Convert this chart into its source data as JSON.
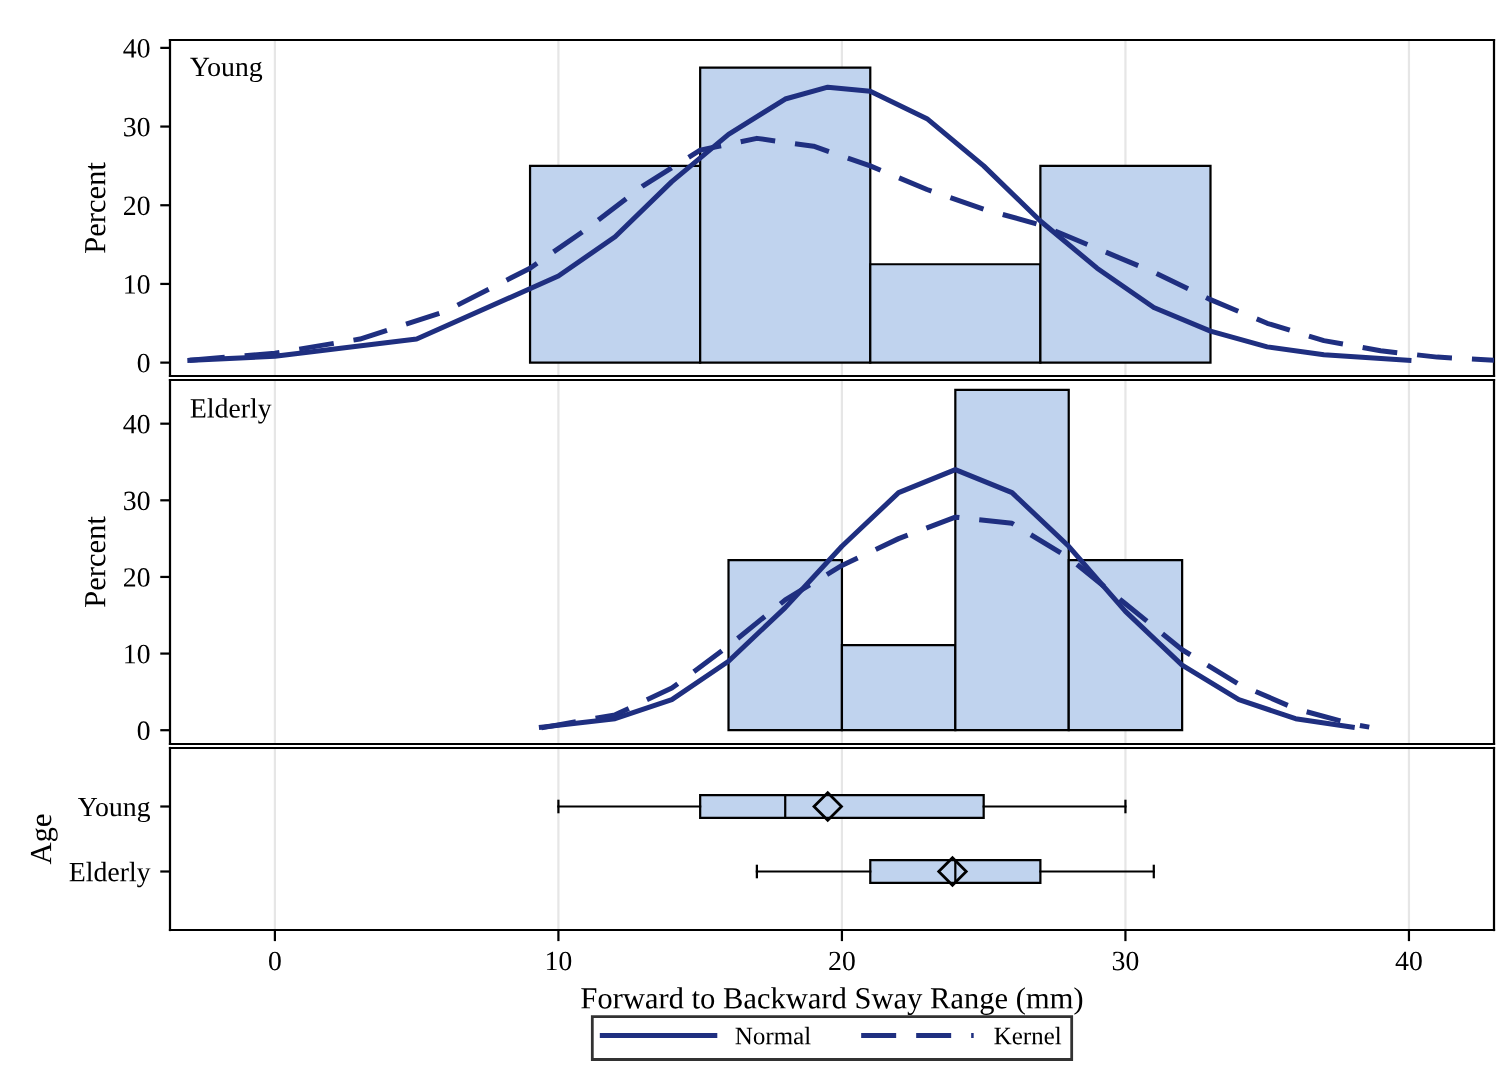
{
  "chart_data": [
    {
      "type": "histogram",
      "annotations": [
        "Young"
      ],
      "ylabel": "Percent",
      "bins": [
        9,
        15,
        21,
        27,
        33
      ],
      "values": [
        25,
        37.5,
        12.5,
        25
      ],
      "color": "#c0d3ee",
      "xlim": [
        -3.7,
        43
      ],
      "ylim": [
        -1.7,
        41
      ],
      "xticks": [
        0,
        10,
        20,
        30,
        40
      ],
      "yticks": [
        0,
        10,
        20,
        30,
        40
      ],
      "tick_labels": "y",
      "grid": "x",
      "legend": "bottom",
      "series": [
        {
          "name": "Normal",
          "type": "line",
          "line_style": "solid",
          "color": "#1f2f80",
          "x": [
            -3,
            0,
            5,
            10,
            12,
            14,
            16,
            18,
            19.5,
            21,
            23,
            25,
            27,
            29,
            31,
            33,
            35,
            37,
            40
          ],
          "values": [
            0.3,
            0.8,
            3,
            11,
            16,
            23,
            29,
            33.5,
            35,
            34.5,
            31,
            25,
            18,
            12,
            7,
            4,
            2,
            1,
            0.3
          ]
        },
        {
          "name": "Kernel",
          "type": "line",
          "line_style": "dashed",
          "color": "#1f2f80",
          "x": [
            -3,
            0,
            3,
            6,
            9,
            11,
            13,
            15,
            17,
            19,
            21,
            23,
            25,
            27,
            29,
            31,
            33,
            35,
            37,
            39,
            41,
            43
          ],
          "values": [
            0.3,
            1.2,
            3,
            6.5,
            12,
            17,
            22.5,
            27,
            28.5,
            27.5,
            25,
            22,
            19.5,
            17.5,
            14.5,
            11.5,
            8,
            5,
            2.8,
            1.5,
            0.7,
            0.3
          ]
        }
      ]
    },
    {
      "type": "histogram",
      "annotations": [
        "Elderly"
      ],
      "ylabel": "Percent",
      "bins": [
        16,
        20,
        24,
        28,
        32
      ],
      "values": [
        22.2,
        11.1,
        44.4,
        22.2
      ],
      "color": "#c0d3ee",
      "xlim": [
        -3.7,
        43
      ],
      "ylim": [
        -1.8,
        45.7
      ],
      "xticks": [
        0,
        10,
        20,
        30,
        40
      ],
      "yticks": [
        0,
        10,
        20,
        30,
        40
      ],
      "tick_labels": "y",
      "grid": "x",
      "series": [
        {
          "name": "Normal",
          "type": "line",
          "line_style": "solid",
          "color": "#1f2f80",
          "x": [
            9.4,
            12,
            14,
            16,
            18,
            20,
            22,
            24,
            26,
            28,
            30,
            32,
            34,
            36,
            38
          ],
          "values": [
            0.4,
            1.5,
            4,
            9,
            16,
            24,
            31,
            34,
            31,
            24,
            15.5,
            8.5,
            4,
            1.5,
            0.4
          ]
        },
        {
          "name": "Kernel",
          "type": "line",
          "line_style": "dashed",
          "color": "#1f2f80",
          "x": [
            9.4,
            12,
            14,
            16,
            18,
            20,
            22,
            24,
            26,
            28,
            30,
            32,
            34,
            36,
            38,
            38.6
          ],
          "values": [
            0.3,
            2,
            5.5,
            11,
            17,
            21.5,
            25,
            27.8,
            27,
            22.5,
            16.5,
            10.5,
            6,
            2.8,
            0.8,
            0.4
          ]
        }
      ]
    },
    {
      "type": "box",
      "categories": [
        "Young",
        "Elderly"
      ],
      "ylabel": "Age",
      "xlabel": "Forward to Backward Sway Range (mm)",
      "orientation": "horizontal",
      "color": "#c0d3ee",
      "xlim": [
        -3.7,
        43
      ],
      "xticks": [
        0,
        10,
        20,
        30,
        40
      ],
      "grid": "x",
      "marker": "diamond",
      "boxes": [
        {
          "low": 10,
          "q1": 15,
          "median": 18,
          "q3": 25,
          "high": 30,
          "mean": 19.5
        },
        {
          "low": 17,
          "q1": 21,
          "median": 24,
          "q3": 27,
          "high": 31,
          "mean": 23.9
        }
      ]
    }
  ]
}
